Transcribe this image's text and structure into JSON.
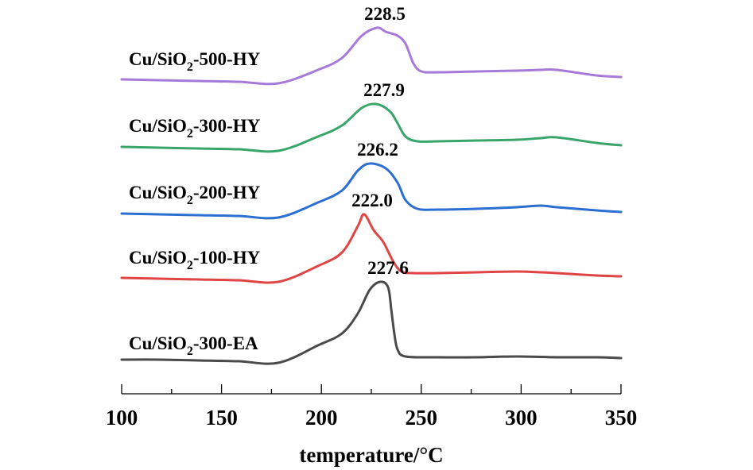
{
  "chart_data": {
    "type": "line",
    "title": "",
    "xlabel": "temperature/°C",
    "ylabel": "",
    "xlim": [
      100,
      350
    ],
    "ylim": [
      0,
      4.7
    ],
    "x_ticks": [
      100,
      150,
      200,
      250,
      300,
      350
    ],
    "x_minor_ticks": [
      125,
      175,
      225,
      275,
      325
    ],
    "y_axis_visible": false,
    "grid": false,
    "legend": "inline-labels-left",
    "series": [
      {
        "name": "Cu/SiO2-500-HY",
        "label_main": "Cu/SiO",
        "label_sub": "2",
        "label_rest": "-500-HY",
        "color": "#a77ad9",
        "peak_label": "228.5",
        "peak_x": 228.5,
        "points": [
          [
            100,
            3.96
          ],
          [
            118.7,
            3.95
          ],
          [
            138.6,
            3.94
          ],
          [
            158.5,
            3.93
          ],
          [
            178.4,
            3.91
          ],
          [
            198.3,
            4.08
          ],
          [
            210.3,
            4.23
          ],
          [
            220.2,
            4.51
          ],
          [
            227.8,
            4.61
          ],
          [
            232.2,
            4.56
          ],
          [
            238.1,
            4.51
          ],
          [
            242.1,
            4.41
          ],
          [
            246.1,
            4.16
          ],
          [
            250.1,
            4.06
          ],
          [
            258.0,
            4.05
          ],
          [
            277.9,
            4.06
          ],
          [
            297.8,
            4.07
          ],
          [
            309.8,
            4.08
          ],
          [
            317.8,
            4.08
          ],
          [
            337.7,
            4.01
          ],
          [
            350,
            3.99
          ]
        ]
      },
      {
        "name": "Cu/SiO2-300-HY",
        "label_main": "Cu/SiO",
        "label_sub": "2",
        "label_rest": "-300-HY",
        "color": "#3aa56b",
        "peak_label": "227.9",
        "peak_x": 227.9,
        "points": [
          [
            100,
            3.11
          ],
          [
            118.7,
            3.1
          ],
          [
            138.6,
            3.09
          ],
          [
            158.5,
            3.08
          ],
          [
            178.4,
            3.06
          ],
          [
            198.3,
            3.24
          ],
          [
            210.3,
            3.38
          ],
          [
            220.2,
            3.6
          ],
          [
            227.4,
            3.65
          ],
          [
            234.2,
            3.56
          ],
          [
            238.1,
            3.41
          ],
          [
            242.1,
            3.24
          ],
          [
            248.1,
            3.18
          ],
          [
            258.0,
            3.18
          ],
          [
            277.9,
            3.19
          ],
          [
            297.8,
            3.2
          ],
          [
            309.8,
            3.22
          ],
          [
            317.8,
            3.23
          ],
          [
            337.7,
            3.16
          ],
          [
            350,
            3.13
          ]
        ]
      },
      {
        "name": "Cu/SiO2-200-HY",
        "label_main": "Cu/SiO",
        "label_sub": "2",
        "label_rest": "-200-HY",
        "color": "#2a6fd1",
        "peak_label": "226.2",
        "peak_x": 226.2,
        "points": [
          [
            100,
            2.27
          ],
          [
            118.7,
            2.26
          ],
          [
            138.6,
            2.25
          ],
          [
            158.5,
            2.24
          ],
          [
            178.4,
            2.22
          ],
          [
            198.3,
            2.41
          ],
          [
            210.3,
            2.56
          ],
          [
            218.2,
            2.81
          ],
          [
            224.2,
            2.9
          ],
          [
            232.2,
            2.84
          ],
          [
            238.1,
            2.66
          ],
          [
            242.1,
            2.44
          ],
          [
            248.1,
            2.33
          ],
          [
            258.0,
            2.32
          ],
          [
            277.9,
            2.33
          ],
          [
            297.8,
            2.35
          ],
          [
            309.8,
            2.37
          ],
          [
            317.8,
            2.35
          ],
          [
            337.7,
            2.31
          ],
          [
            350,
            2.29
          ]
        ]
      },
      {
        "name": "Cu/SiO2-100-HY",
        "label_main": "Cu/SiO",
        "label_sub": "2",
        "label_rest": "-100-HY",
        "color": "#e04545",
        "peak_label": "222.0",
        "peak_x": 222.0,
        "points": [
          [
            100,
            1.46
          ],
          [
            118.7,
            1.45
          ],
          [
            138.6,
            1.44
          ],
          [
            158.5,
            1.43
          ],
          [
            178.4,
            1.41
          ],
          [
            198.3,
            1.61
          ],
          [
            210.3,
            1.78
          ],
          [
            218.2,
            2.11
          ],
          [
            221.4,
            2.26
          ],
          [
            226.2,
            2.06
          ],
          [
            231.0,
            1.91
          ],
          [
            236.1,
            1.66
          ],
          [
            240.1,
            1.54
          ],
          [
            246.1,
            1.52
          ],
          [
            258.0,
            1.52
          ],
          [
            277.9,
            1.53
          ],
          [
            297.8,
            1.54
          ],
          [
            309.8,
            1.53
          ],
          [
            317.8,
            1.52
          ],
          [
            337.7,
            1.49
          ],
          [
            350,
            1.48
          ]
        ]
      },
      {
        "name": "Cu/SiO2-300-EA",
        "label_main": "Cu/SiO",
        "label_sub": "2",
        "label_rest": "-300-EA",
        "color": "#4a4a4a",
        "peak_label": "227.6",
        "peak_x": 227.6,
        "points": [
          [
            100,
            0.43
          ],
          [
            118.7,
            0.43
          ],
          [
            138.6,
            0.42
          ],
          [
            158.5,
            0.41
          ],
          [
            178.4,
            0.39
          ],
          [
            198.3,
            0.61
          ],
          [
            210.3,
            0.76
          ],
          [
            218.2,
            1.01
          ],
          [
            224.2,
            1.31
          ],
          [
            229.4,
            1.41
          ],
          [
            233.4,
            1.34
          ],
          [
            235.0,
            1.06
          ],
          [
            236.5,
            0.76
          ],
          [
            238.1,
            0.56
          ],
          [
            242.1,
            0.47
          ],
          [
            258.0,
            0.46
          ],
          [
            277.9,
            0.46
          ],
          [
            297.8,
            0.47
          ],
          [
            317.8,
            0.46
          ],
          [
            337.7,
            0.46
          ],
          [
            350,
            0.45
          ]
        ]
      }
    ]
  }
}
